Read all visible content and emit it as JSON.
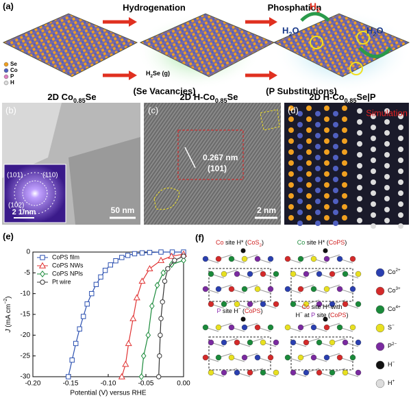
{
  "panel_a": {
    "label": "(a)",
    "step1": "Hydrogenation",
    "step1_note": "(Se Vacancies)",
    "step2": "Phosphation",
    "step2_note": "(P Substitutions)",
    "gas": [
      {
        "t": "H"
      },
      {
        "t": "2",
        "s": "sub"
      },
      {
        "t": "Se (g)"
      }
    ],
    "h2": [
      {
        "t": "H"
      },
      {
        "t": "2",
        "s": "sub"
      }
    ],
    "water": [
      {
        "t": "H"
      },
      {
        "t": "2",
        "s": "sub"
      },
      {
        "t": "O"
      }
    ],
    "legend": [
      {
        "name": "Se",
        "color": "#f0a020"
      },
      {
        "name": "Co",
        "color": "#5060c0"
      },
      {
        "name": "P",
        "color": "#e080c0"
      },
      {
        "name": "H",
        "color": "#dddddd"
      }
    ],
    "captions": [
      [
        {
          "t": "2D Co"
        },
        {
          "t": "0.85",
          "s": "sub"
        },
        {
          "t": "Se"
        }
      ],
      [
        {
          "t": "2D H-Co"
        },
        {
          "t": "0.85",
          "s": "sub"
        },
        {
          "t": "Se"
        }
      ],
      [
        {
          "t": "2D H-Co"
        },
        {
          "t": "0.85",
          "s": "sub"
        },
        {
          "t": "Se|P"
        }
      ]
    ]
  },
  "panel_b": {
    "label": "(b)",
    "inset_labels": [
      "(101)",
      "(110)",
      "(102)"
    ],
    "inset_scale": "2 1/nm",
    "scale": "50 nm"
  },
  "panel_c": {
    "label": "(c)",
    "spacing": "0.267 nm",
    "plane": "(101)",
    "scale": "2 nm"
  },
  "panel_d": {
    "label": "(d)",
    "title": "Simulation"
  },
  "chart_data": {
    "type": "line",
    "panel_label": "(e)",
    "xlabel": "Potential (V) versus RHE",
    "ylabel": [
      {
        "t": "J",
        "s": "i"
      },
      {
        "t": " (mA cm"
      },
      {
        "t": "−2",
        "s": "sup"
      },
      {
        "t": ")"
      }
    ],
    "xlim": [
      -0.2,
      0
    ],
    "ylim": [
      -30,
      0
    ],
    "xticks": [
      {
        "value": -0.2,
        "label": "-0.20"
      },
      {
        "value": -0.15,
        "label": "-0.15"
      },
      {
        "value": -0.1,
        "label": "-0.10"
      },
      {
        "value": -0.05,
        "label": "-0.05"
      },
      {
        "value": 0,
        "label": "0.00"
      }
    ],
    "yticks": [
      0,
      -5,
      -10,
      -15,
      -20,
      -25,
      -30
    ],
    "legend": "upper left",
    "series": [
      {
        "name": "CoPS film",
        "color": "#2a4fb0",
        "marker": "square",
        "x": [
          -0.153,
          -0.148,
          -0.143,
          -0.138,
          -0.133,
          -0.128,
          -0.122,
          -0.116,
          -0.11,
          -0.104,
          -0.097,
          -0.09,
          -0.082,
          -0.074,
          -0.065,
          -0.055,
          -0.045,
          -0.03,
          -0.015,
          0
        ],
        "values": [
          -30,
          -26,
          -22,
          -18.5,
          -15.5,
          -12.5,
          -10,
          -7.8,
          -6,
          -4.4,
          -3.1,
          -2.1,
          -1.3,
          -0.8,
          -0.4,
          -0.2,
          -0.1,
          0,
          0,
          0
        ]
      },
      {
        "name": "CoPS NWs",
        "color": "#e03030",
        "marker": "triangle",
        "x": [
          -0.082,
          -0.077,
          -0.073,
          -0.067,
          -0.062,
          -0.055,
          -0.045,
          -0.03,
          -0.016,
          0
        ],
        "values": [
          -30,
          -27,
          -22,
          -16,
          -11,
          -7,
          -4,
          -2,
          -1,
          -0.5
        ]
      },
      {
        "name": "CoPS NPls",
        "color": "#1a8a3a",
        "marker": "diamond",
        "x": [
          -0.056,
          -0.053,
          -0.047,
          -0.042,
          -0.035,
          -0.027,
          -0.016,
          0
        ],
        "values": [
          -30,
          -25,
          -20,
          -13,
          -8,
          -5,
          -3,
          -2
        ]
      },
      {
        "name": "Pt  wire",
        "color": "#333333",
        "marker": "circle",
        "x": [
          -0.033,
          -0.032,
          -0.031,
          -0.03,
          -0.028,
          -0.025,
          -0.021,
          -0.012,
          0
        ],
        "values": [
          -30,
          -25,
          -20,
          -16,
          -12,
          -7,
          -4,
          -2,
          -1
        ]
      }
    ]
  },
  "panel_f": {
    "label": "(f)",
    "captions": [
      [
        [
          {
            "t": "Co",
            "c": "#d02020"
          },
          {
            "t": " site H* ("
          },
          {
            "t": "CoS",
            "c": "#d02020"
          },
          {
            "t": "2",
            "s": "sub",
            "c": "#d02020"
          },
          {
            "t": ")"
          }
        ]
      ],
      [
        [
          {
            "t": "Co",
            "c": "#1a8a3a"
          },
          {
            "t": " site H* ("
          },
          {
            "t": "CoPS",
            "c": "#d02020"
          },
          {
            "t": ")"
          }
        ]
      ],
      [
        [
          {
            "t": "P",
            "c": "#8a2ab0"
          },
          {
            "t": " site H"
          },
          {
            "t": "−",
            "s": "sup"
          },
          {
            "t": " ("
          },
          {
            "t": "CoPS",
            "c": "#d02020"
          },
          {
            "t": ")"
          }
        ]
      ],
      [
        [
          {
            "t": "Co",
            "c": "#d02020"
          },
          {
            "t": " site H* with"
          }
        ],
        [
          {
            "t": "H"
          },
          {
            "t": "−",
            "s": "sup"
          },
          {
            "t": " at "
          },
          {
            "t": "P",
            "c": "#8a2ab0"
          },
          {
            "t": " site ("
          },
          {
            "t": "CoPS",
            "c": "#d02020"
          },
          {
            "t": ")"
          }
        ]
      ]
    ],
    "legend": [
      {
        "name": [
          {
            "t": "Co"
          },
          {
            "t": "2+",
            "s": "sup"
          }
        ],
        "color": "#2a3fb0"
      },
      {
        "name": [
          {
            "t": "Co"
          },
          {
            "t": "3+",
            "s": "sup"
          }
        ],
        "color": "#d42a2a"
      },
      {
        "name": [
          {
            "t": "Co"
          },
          {
            "t": "4+",
            "s": "sup"
          }
        ],
        "color": "#1a8a3a"
      },
      {
        "name": [
          {
            "t": "S"
          },
          {
            "t": "−",
            "s": "sup"
          }
        ],
        "color": "#e8e020"
      },
      {
        "name": [
          {
            "t": "P"
          },
          {
            "t": "2−",
            "s": "sup"
          }
        ],
        "color": "#7a2aa0"
      },
      {
        "name": [
          {
            "t": "H"
          },
          {
            "t": "−",
            "s": "sup"
          }
        ],
        "color": "#111111"
      },
      {
        "name": [
          {
            "t": "H"
          },
          {
            "t": "+",
            "s": "sup"
          }
        ],
        "color": "#dddddd"
      }
    ]
  }
}
